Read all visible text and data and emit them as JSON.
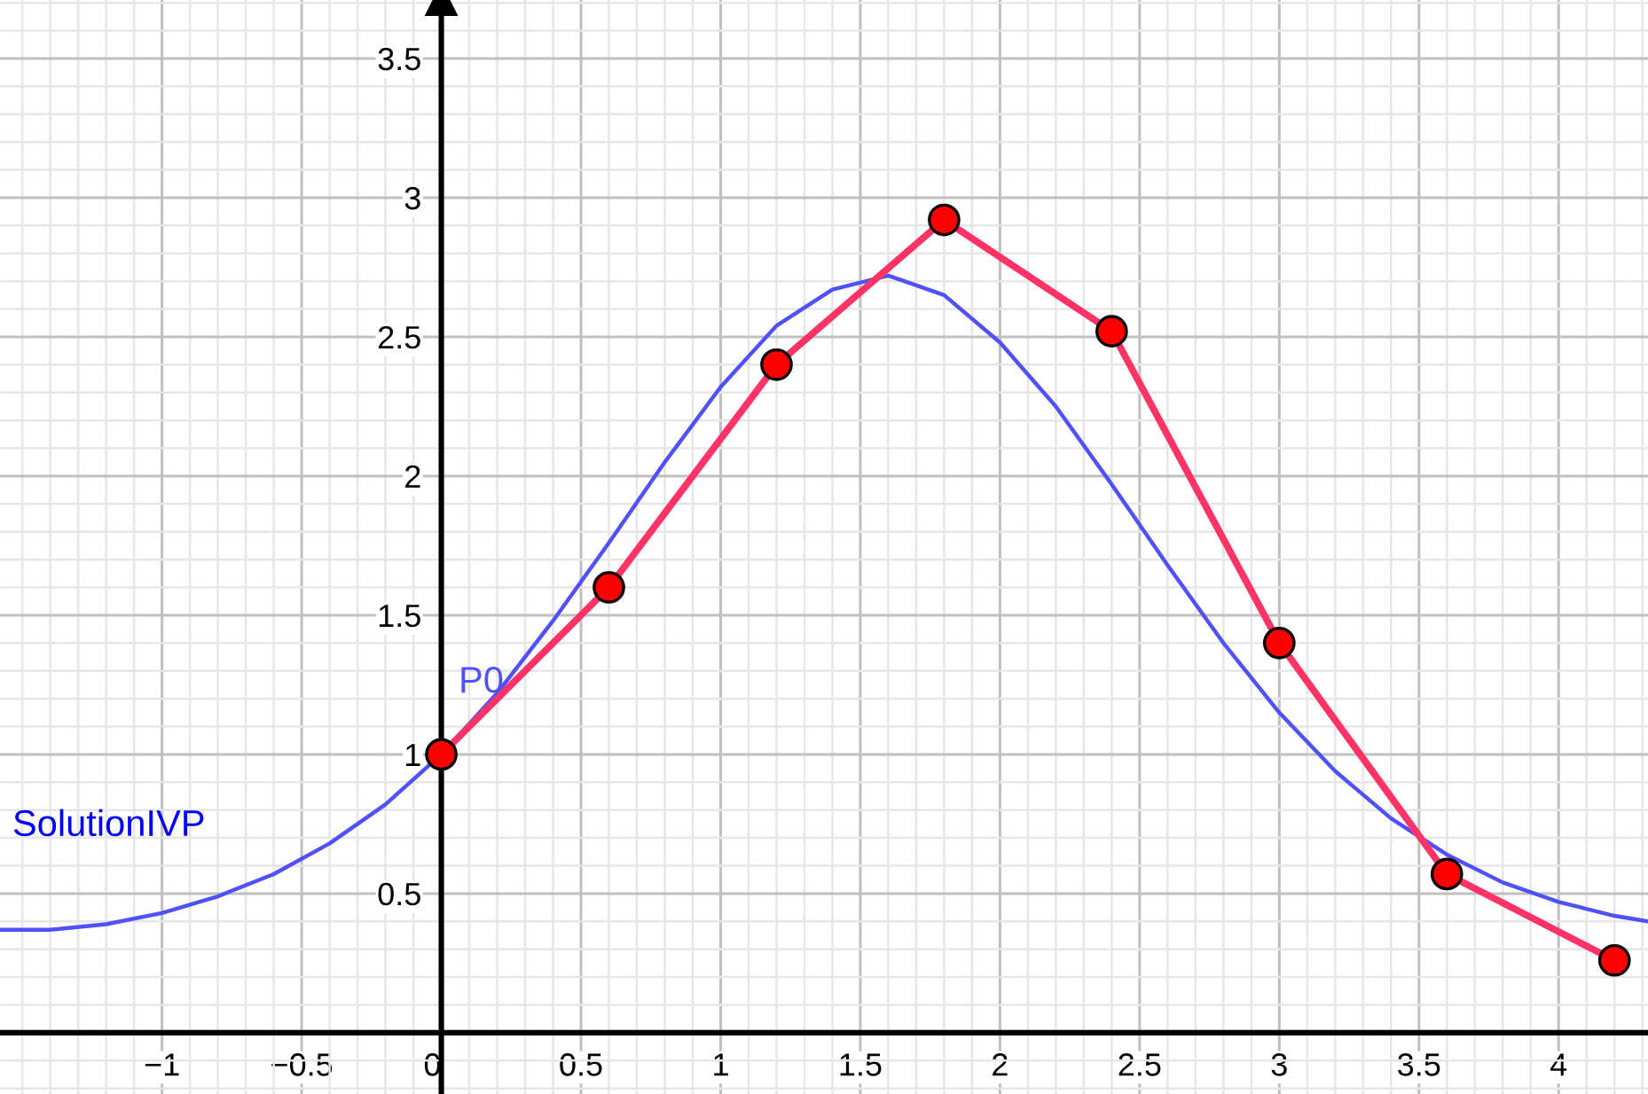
{
  "chart_data": {
    "type": "line",
    "xlim": [
      -1.58,
      4.32
    ],
    "ylim": [
      -0.22,
      3.71
    ],
    "xticks": [
      {
        "value": -1,
        "label": "−1"
      },
      {
        "value": -0.5,
        "label": "−0.5"
      },
      0,
      0.5,
      1,
      1.5,
      2,
      2.5,
      3,
      3.5,
      4
    ],
    "yticks": [
      0.5,
      1,
      1.5,
      2,
      2.5,
      3,
      3.5
    ],
    "grid": true,
    "legend": false,
    "series": [
      {
        "name": "SolutionIVP",
        "color": "#5050ff",
        "marker": "none",
        "x": [
          -1.58,
          -1.4,
          -1.2,
          -1.0,
          -0.8,
          -0.6,
          -0.4,
          -0.2,
          0,
          0.2,
          0.4,
          0.6,
          0.8,
          1.0,
          1.2,
          1.4,
          1.6,
          1.8,
          2.0,
          2.2,
          2.4,
          2.6,
          2.8,
          3.0,
          3.2,
          3.4,
          3.6,
          3.8,
          4.0,
          4.2,
          4.32
        ],
        "values": [
          0.37,
          0.37,
          0.39,
          0.43,
          0.49,
          0.57,
          0.68,
          0.82,
          1.0,
          1.22,
          1.48,
          1.76,
          2.05,
          2.32,
          2.54,
          2.67,
          2.72,
          2.65,
          2.48,
          2.25,
          1.97,
          1.68,
          1.4,
          1.15,
          0.94,
          0.77,
          0.64,
          0.54,
          0.47,
          0.42,
          0.4
        ]
      },
      {
        "color": "#ff3366",
        "marker": "circle",
        "x": [
          0,
          0.6,
          1.2,
          1.8,
          2.4,
          3.0,
          3.6,
          4.2
        ],
        "values": [
          1.0,
          1.6,
          2.4,
          2.92,
          2.52,
          1.4,
          0.57,
          0.26
        ]
      }
    ],
    "annotations": [
      {
        "text": "P0",
        "x": 0,
        "y": 1
      }
    ]
  }
}
